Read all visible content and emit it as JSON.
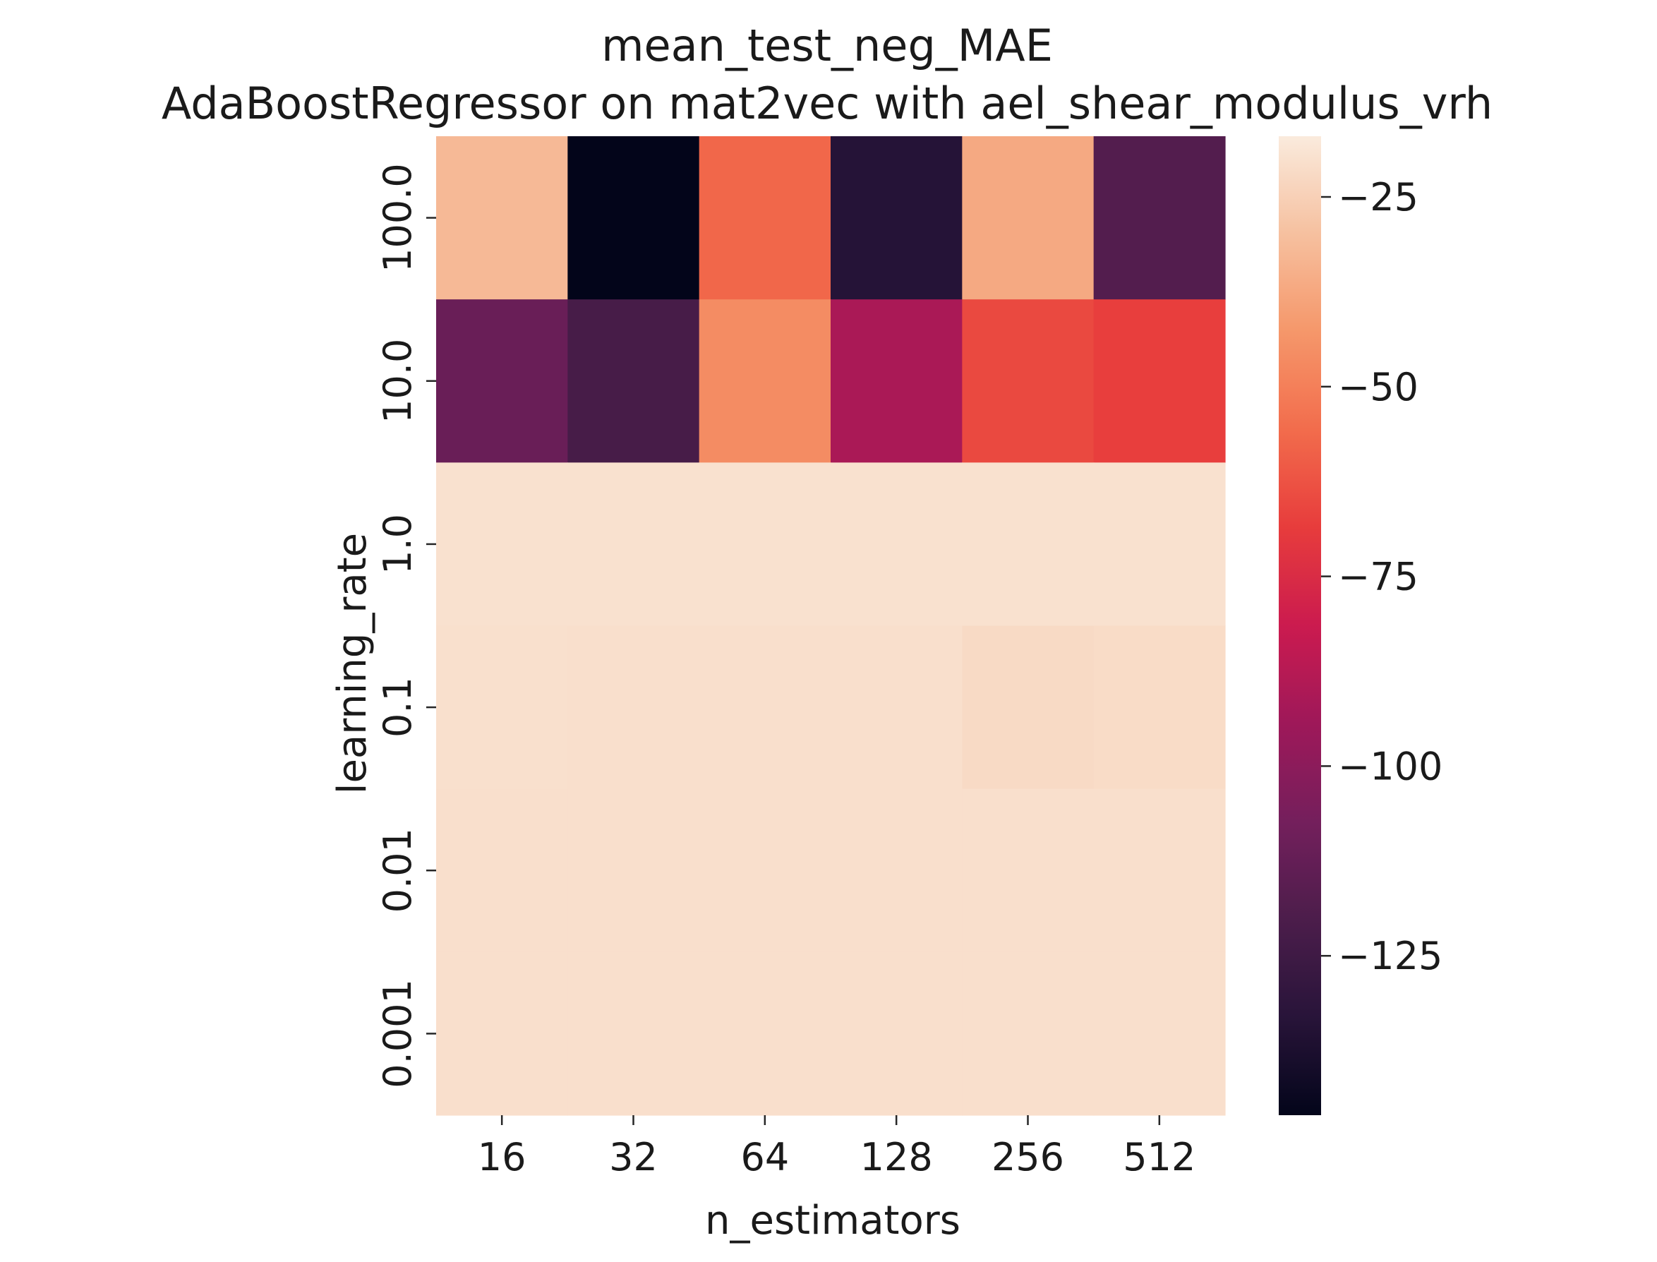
{
  "chart_data": {
    "type": "heatmap",
    "title": "mean_test_neg_MAE",
    "subtitle": "AdaBoostRegressor on mat2vec with ael_shear_modulus_vrh",
    "xlabel": "n_estimators",
    "ylabel": "learning_rate",
    "x_categories": [
      "16",
      "32",
      "64",
      "128",
      "256",
      "512"
    ],
    "y_categories": [
      "100.0",
      "10.0",
      "1.0",
      "0.1",
      "0.01",
      "0.001"
    ],
    "values": [
      [
        -32,
        -146,
        -57,
        -134,
        -37,
        -118
      ],
      [
        -111,
        -122,
        -46,
        -91,
        -65,
        -68
      ],
      [
        -20,
        -20,
        -20,
        -20,
        -20,
        -20
      ],
      [
        -20.4,
        -20.6,
        -20.6,
        -20.6,
        -22,
        -21.6
      ],
      [
        -20.6,
        -20.6,
        -20.6,
        -20.6,
        -20.6,
        -20.6
      ],
      [
        -20.6,
        -20.6,
        -20.6,
        -20.6,
        -20.6,
        -20.6
      ]
    ],
    "colorbar": {
      "vmin": -146,
      "vmax": -17,
      "ticks": [
        -25,
        -50,
        -75,
        -100,
        -125
      ],
      "tick_labels": [
        "−25",
        "−50",
        "−75",
        "−100",
        "−125"
      ],
      "colormap": "rocket"
    },
    "grid": false
  }
}
